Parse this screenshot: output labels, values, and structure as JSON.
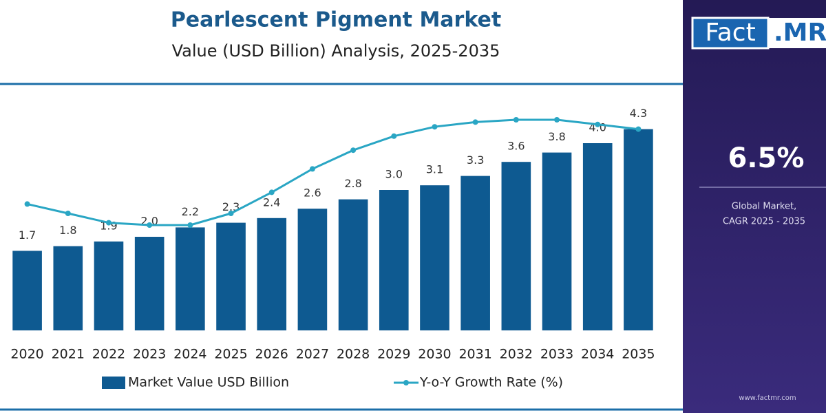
{
  "chart_data": {
    "type": "bar",
    "title": "Pearlescent Pigment Market",
    "subtitle": "Value (USD Billion) Analysis, 2025-2035",
    "categories": [
      "2020",
      "2021",
      "2022",
      "2023",
      "2024",
      "2025",
      "2026",
      "2027",
      "2028",
      "2029",
      "2030",
      "2031",
      "2032",
      "2033",
      "2034",
      "2035"
    ],
    "series": [
      {
        "name": "Market Value USD Billion",
        "type": "bar",
        "color": "#0e5a91",
        "values": [
          1.7,
          1.8,
          1.9,
          2.0,
          2.2,
          2.3,
          2.4,
          2.6,
          2.8,
          3.0,
          3.1,
          3.3,
          3.6,
          3.8,
          4.0,
          4.3
        ],
        "value_labels": [
          "1.7",
          "1.8",
          "1.9",
          "2.0",
          "2.2",
          "2.3",
          "2.4",
          "2.6",
          "2.8",
          "3.0",
          "3.1",
          "3.3",
          "3.6",
          "3.8",
          "4.0",
          "4.3"
        ]
      },
      {
        "name": "Y-o-Y Growth Rate (%)",
        "type": "line",
        "axis": "y2",
        "color": "#2aa6c4",
        "values": [
          5.4,
          5.0,
          4.6,
          4.5,
          4.5,
          5.0,
          5.9,
          6.9,
          7.7,
          8.3,
          8.7,
          8.9,
          9.0,
          9.0,
          8.8,
          8.6
        ]
      }
    ],
    "ylim": [
      0,
      5
    ],
    "y2lim": [
      0,
      10
    ],
    "legend": "bottom"
  },
  "sidebar": {
    "logo_left": "Fact",
    "logo_right": ".MR",
    "cagr": "6.5%",
    "caption": [
      "Global Market,",
      "CAGR 2025 - 2035"
    ],
    "website": "www.factmr.com"
  }
}
